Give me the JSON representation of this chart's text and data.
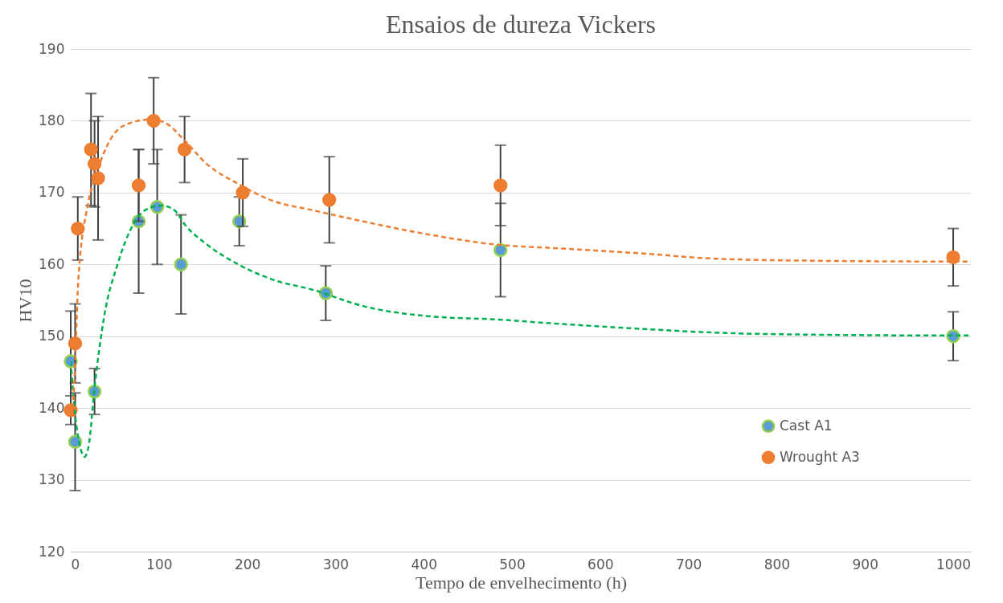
{
  "chart_data": {
    "type": "scatter",
    "title": "Ensaios de dureza Vickers",
    "xlabel": "Tempo de envelhecimento (h)",
    "ylabel": "HV10",
    "xlim": [
      0,
      1020
    ],
    "xticks": [
      0,
      100,
      200,
      300,
      400,
      500,
      600,
      700,
      800,
      900,
      1000
    ],
    "ylim": [
      120,
      190
    ],
    "yticks": [
      120,
      130,
      140,
      150,
      160,
      170,
      180,
      190
    ],
    "grid": "y",
    "legend": "bottom right",
    "marker": "circle",
    "series": [
      {
        "name": "Cast A1",
        "color": "#5b9bd5",
        "x": [
          0,
          5,
          27,
          77,
          98,
          125,
          191,
          289,
          487,
          1000
        ],
        "values": [
          146.5,
          135.3,
          142.3,
          166,
          168,
          160,
          166,
          156,
          162,
          150
        ],
        "errors": [
          7,
          6.8,
          3.2,
          10,
          8,
          6.9,
          3.4,
          3.8,
          6.5,
          3.4
        ]
      },
      {
        "name": "Wrought A3",
        "color": "#ed7d31",
        "x": [
          0,
          5,
          8,
          23,
          27,
          31,
          77,
          94,
          129,
          195,
          293,
          487,
          1000
        ],
        "values": [
          139.7,
          149,
          165,
          176,
          174,
          172,
          171,
          180,
          176,
          170,
          169,
          171,
          161
        ],
        "errors": [
          2,
          5.5,
          4.4,
          7.8,
          6,
          8.6,
          5,
          6,
          4.6,
          4.7,
          6,
          5.6,
          4
        ]
      },
      {
        "type": "line",
        "color": "#00b050",
        "line_style": "dashed",
        "marker": "none",
        "x": [
          0,
          5,
          10,
          15.5,
          20,
          27.5,
          38,
          53,
          71,
          92,
          103,
          118,
          129,
          154,
          190,
          226,
          276,
          331,
          404,
          487,
          544,
          650,
          730,
          850,
          1000,
          1020
        ],
        "values": [
          146.5,
          139,
          135,
          133.2,
          134.5,
          143.4,
          152.8,
          160,
          165.6,
          168,
          168.2,
          167.5,
          165.6,
          162.8,
          160,
          158,
          156.4,
          154.2,
          152.8,
          152.3,
          151.8,
          151,
          150.5,
          150.2,
          150.1,
          150.1
        ]
      },
      {
        "type": "line",
        "color": "#ed7d31",
        "line_style": "dashed",
        "marker": "none",
        "x": [
          2,
          4,
          8.5,
          19.5,
          30,
          45,
          63,
          92,
          110,
          128,
          154,
          190,
          226,
          276,
          331,
          404,
          487,
          544,
          650,
          730,
          850,
          1000,
          1020
        ],
        "values": [
          140,
          143.4,
          157.6,
          168.4,
          173,
          177.4,
          179.5,
          180.2,
          179.5,
          177.4,
          174,
          171.2,
          169,
          167.5,
          166,
          164.2,
          162.7,
          162.3,
          161.5,
          160.8,
          160.5,
          160.4,
          160.4
        ]
      }
    ]
  }
}
